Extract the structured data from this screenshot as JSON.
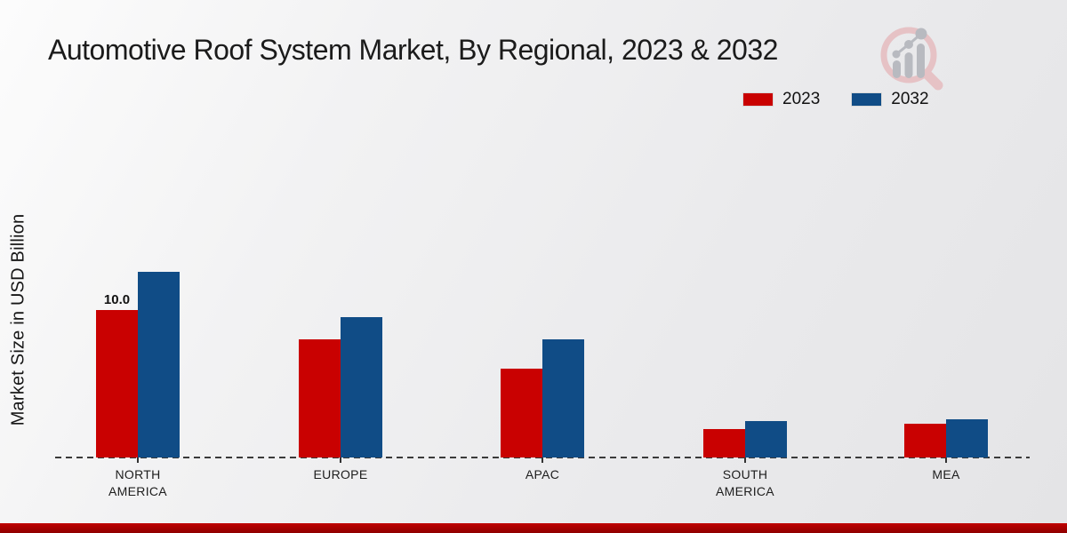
{
  "title": "Automotive Roof System Market, By Regional, 2023 & 2032",
  "y_axis_label": "Market Size in USD Billion",
  "legend": {
    "position": "top-right",
    "items": [
      {
        "label": "2023",
        "color": "#c90101"
      },
      {
        "label": "2032",
        "color": "#104c86"
      }
    ]
  },
  "watermark_icon": "magnifier-growth-chart-logo",
  "footer_bar_color": "#c00000",
  "chart_data": {
    "type": "bar",
    "title": "Automotive Roof System Market, By Regional, 2023 & 2032",
    "categories": [
      "NORTH AMERICA",
      "EUROPE",
      "APAC",
      "SOUTH AMERICA",
      "MEA"
    ],
    "series": [
      {
        "name": "2023",
        "color": "#c90101",
        "values": [
          10.0,
          8.0,
          6.0,
          1.9,
          2.3
        ]
      },
      {
        "name": "2032",
        "color": "#104c86",
        "values": [
          12.6,
          9.5,
          8.0,
          2.5,
          2.6
        ]
      }
    ],
    "value_labels": [
      {
        "series_index": 0,
        "category_index": 0,
        "text": "10.0"
      }
    ],
    "xlabel": "",
    "ylabel": "Market Size in USD Billion",
    "ylim": [
      0,
      13.5
    ],
    "grid": false,
    "legend_position": "top-right",
    "baseline_style": "dashed"
  }
}
